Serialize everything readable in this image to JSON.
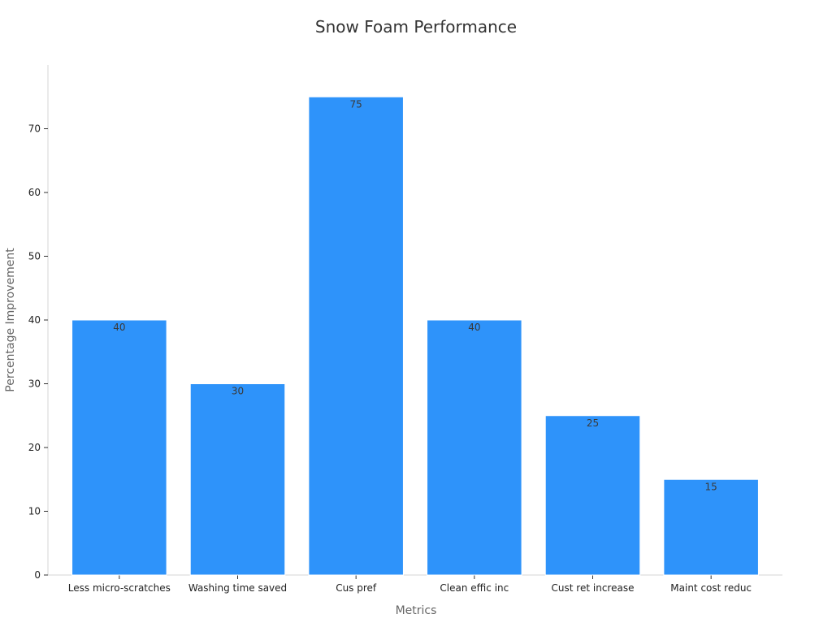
{
  "chart_data": {
    "type": "bar",
    "title": "Snow Foam Performance",
    "xlabel": "Metrics",
    "ylabel": "Percentage Improvement",
    "categories": [
      "Less micro-scratches",
      "Washing time saved",
      "Cus pref",
      "Clean effic inc",
      "Cust ret increase",
      "Maint cost reduc"
    ],
    "values": [
      40,
      30,
      75,
      40,
      25,
      15
    ],
    "data_labels": [
      "40",
      "30",
      "75",
      "40",
      "25",
      "15"
    ],
    "yticks": [
      0,
      10,
      20,
      30,
      40,
      50,
      60,
      70
    ],
    "ylim": [
      0,
      80
    ],
    "grid": false,
    "legend": "none",
    "bar_color": "#2e93fa"
  }
}
